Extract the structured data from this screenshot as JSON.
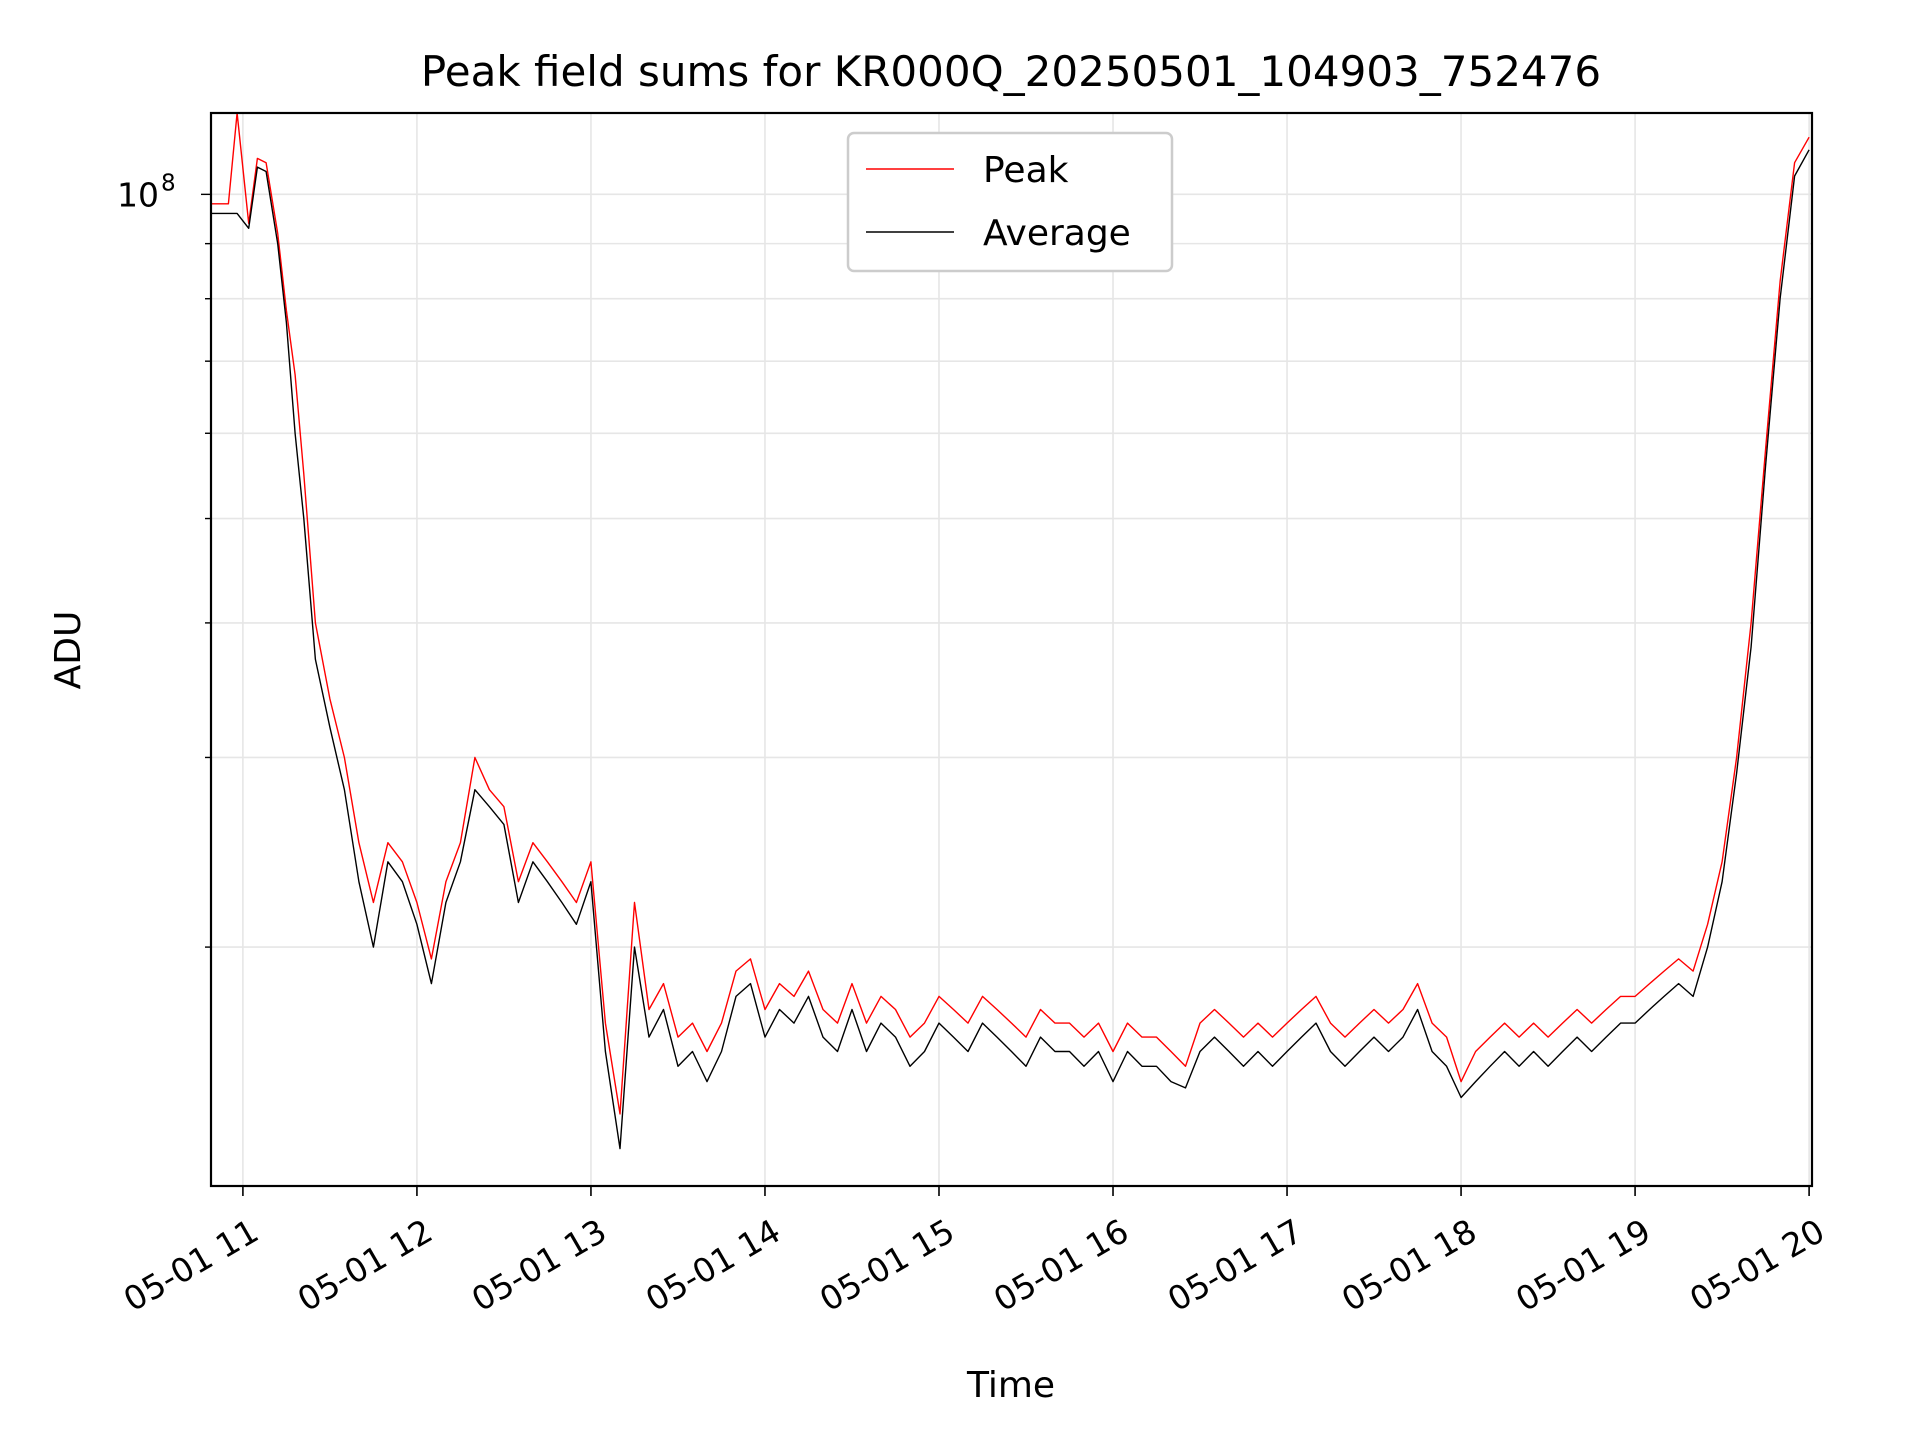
{
  "chart_data": {
    "type": "line",
    "title": "Peak field sums for KR000Q_20250501_104903_752476",
    "xlabel": "Time",
    "ylabel": "ADU",
    "y_scale": "log",
    "x_range": [
      "2025-05-01 10:49",
      "2025-05-01 20:01"
    ],
    "ylim": [
      12000000,
      119000000
    ],
    "x_ticks": [
      "05-01 11",
      "05-01 12",
      "05-01 13",
      "05-01 14",
      "05-01 15",
      "05-01 16",
      "05-01 17",
      "05-01 18",
      "05-01 19",
      "05-01 20"
    ],
    "y_ticks": [
      {
        "value": 100000000,
        "base": "10",
        "exponent": "8"
      }
    ],
    "grid": true,
    "legend_position": "top-center",
    "series": [
      {
        "name": "Peak",
        "color": "#ff0000",
        "x": [
          "2025-05-01 10:49",
          "2025-05-01 10:55",
          "2025-05-01 10:58",
          "2025-05-01 11:02",
          "2025-05-01 11:05",
          "2025-05-01 11:08",
          "2025-05-01 11:12",
          "2025-05-01 11:15",
          "2025-05-01 11:18",
          "2025-05-01 11:21",
          "2025-05-01 11:25",
          "2025-05-01 11:30",
          "2025-05-01 11:35",
          "2025-05-01 11:40",
          "2025-05-01 11:45",
          "2025-05-01 11:50",
          "2025-05-01 11:55",
          "2025-05-01 12:00",
          "2025-05-01 12:05",
          "2025-05-01 12:10",
          "2025-05-01 12:15",
          "2025-05-01 12:20",
          "2025-05-01 12:25",
          "2025-05-01 12:30",
          "2025-05-01 12:35",
          "2025-05-01 12:40",
          "2025-05-01 12:45",
          "2025-05-01 12:50",
          "2025-05-01 12:55",
          "2025-05-01 13:00",
          "2025-05-01 13:05",
          "2025-05-01 13:10",
          "2025-05-01 13:15",
          "2025-05-01 13:20",
          "2025-05-01 13:25",
          "2025-05-01 13:30",
          "2025-05-01 13:35",
          "2025-05-01 13:40",
          "2025-05-01 13:45",
          "2025-05-01 13:50",
          "2025-05-01 13:55",
          "2025-05-01 14:00",
          "2025-05-01 14:05",
          "2025-05-01 14:10",
          "2025-05-01 14:15",
          "2025-05-01 14:20",
          "2025-05-01 14:25",
          "2025-05-01 14:30",
          "2025-05-01 14:35",
          "2025-05-01 14:40",
          "2025-05-01 14:45",
          "2025-05-01 14:50",
          "2025-05-01 14:55",
          "2025-05-01 15:00",
          "2025-05-01 15:05",
          "2025-05-01 15:10",
          "2025-05-01 15:15",
          "2025-05-01 15:20",
          "2025-05-01 15:25",
          "2025-05-01 15:30",
          "2025-05-01 15:35",
          "2025-05-01 15:40",
          "2025-05-01 15:45",
          "2025-05-01 15:50",
          "2025-05-01 15:55",
          "2025-05-01 16:00",
          "2025-05-01 16:05",
          "2025-05-01 16:10",
          "2025-05-01 16:15",
          "2025-05-01 16:20",
          "2025-05-01 16:25",
          "2025-05-01 16:30",
          "2025-05-01 16:35",
          "2025-05-01 16:40",
          "2025-05-01 16:45",
          "2025-05-01 16:50",
          "2025-05-01 16:55",
          "2025-05-01 17:00",
          "2025-05-01 17:05",
          "2025-05-01 17:10",
          "2025-05-01 17:15",
          "2025-05-01 17:20",
          "2025-05-01 17:25",
          "2025-05-01 17:30",
          "2025-05-01 17:35",
          "2025-05-01 17:40",
          "2025-05-01 17:45",
          "2025-05-01 17:50",
          "2025-05-01 17:55",
          "2025-05-01 18:00",
          "2025-05-01 18:05",
          "2025-05-01 18:10",
          "2025-05-01 18:15",
          "2025-05-01 18:20",
          "2025-05-01 18:25",
          "2025-05-01 18:30",
          "2025-05-01 18:35",
          "2025-05-01 18:40",
          "2025-05-01 18:45",
          "2025-05-01 18:50",
          "2025-05-01 18:55",
          "2025-05-01 19:00",
          "2025-05-01 19:05",
          "2025-05-01 19:10",
          "2025-05-01 19:15",
          "2025-05-01 19:20",
          "2025-05-01 19:25",
          "2025-05-01 19:30",
          "2025-05-01 19:35",
          "2025-05-01 19:40",
          "2025-05-01 19:45",
          "2025-05-01 19:50",
          "2025-05-01 19:55",
          "2025-05-01 20:00"
        ],
        "y": [
          98000000,
          98000000,
          119000000,
          94000000,
          108000000,
          107000000,
          92000000,
          78000000,
          68000000,
          55000000,
          40000000,
          34000000,
          30000000,
          25000000,
          22000000,
          25000000,
          24000000,
          22000000,
          19500000,
          23000000,
          25000000,
          30000000,
          28000000,
          27000000,
          23000000,
          25000000,
          24000000,
          23000000,
          22000000,
          24000000,
          17000000,
          14000000,
          22000000,
          17500000,
          18500000,
          16500000,
          17000000,
          16000000,
          17000000,
          19000000,
          19500000,
          17500000,
          18500000,
          18000000,
          19000000,
          17500000,
          17000000,
          18500000,
          17000000,
          18000000,
          17500000,
          16500000,
          17000000,
          18000000,
          17500000,
          17000000,
          18000000,
          17500000,
          17000000,
          16500000,
          17500000,
          17000000,
          17000000,
          16500000,
          17000000,
          16000000,
          17000000,
          16500000,
          16500000,
          16000000,
          15500000,
          17000000,
          17500000,
          17000000,
          16500000,
          17000000,
          16500000,
          17000000,
          17500000,
          18000000,
          17000000,
          16500000,
          17000000,
          17500000,
          17000000,
          17500000,
          18500000,
          17000000,
          16500000,
          15000000,
          16000000,
          16500000,
          17000000,
          16500000,
          17000000,
          16500000,
          17000000,
          17500000,
          17000000,
          17500000,
          18000000,
          18000000,
          18500000,
          19000000,
          19500000,
          19000000,
          21000000,
          24000000,
          30000000,
          40000000,
          58000000,
          83000000,
          107000000,
          113000000
        ]
      },
      {
        "name": "Average",
        "color": "#000000",
        "x": [
          "2025-05-01 10:49",
          "2025-05-01 10:55",
          "2025-05-01 10:58",
          "2025-05-01 11:02",
          "2025-05-01 11:05",
          "2025-05-01 11:08",
          "2025-05-01 11:12",
          "2025-05-01 11:15",
          "2025-05-01 11:18",
          "2025-05-01 11:21",
          "2025-05-01 11:25",
          "2025-05-01 11:30",
          "2025-05-01 11:35",
          "2025-05-01 11:40",
          "2025-05-01 11:45",
          "2025-05-01 11:50",
          "2025-05-01 11:55",
          "2025-05-01 12:00",
          "2025-05-01 12:05",
          "2025-05-01 12:10",
          "2025-05-01 12:15",
          "2025-05-01 12:20",
          "2025-05-01 12:25",
          "2025-05-01 12:30",
          "2025-05-01 12:35",
          "2025-05-01 12:40",
          "2025-05-01 12:45",
          "2025-05-01 12:50",
          "2025-05-01 12:55",
          "2025-05-01 13:00",
          "2025-05-01 13:05",
          "2025-05-01 13:10",
          "2025-05-01 13:15",
          "2025-05-01 13:20",
          "2025-05-01 13:25",
          "2025-05-01 13:30",
          "2025-05-01 13:35",
          "2025-05-01 13:40",
          "2025-05-01 13:45",
          "2025-05-01 13:50",
          "2025-05-01 13:55",
          "2025-05-01 14:00",
          "2025-05-01 14:05",
          "2025-05-01 14:10",
          "2025-05-01 14:15",
          "2025-05-01 14:20",
          "2025-05-01 14:25",
          "2025-05-01 14:30",
          "2025-05-01 14:35",
          "2025-05-01 14:40",
          "2025-05-01 14:45",
          "2025-05-01 14:50",
          "2025-05-01 14:55",
          "2025-05-01 15:00",
          "2025-05-01 15:05",
          "2025-05-01 15:10",
          "2025-05-01 15:15",
          "2025-05-01 15:20",
          "2025-05-01 15:25",
          "2025-05-01 15:30",
          "2025-05-01 15:35",
          "2025-05-01 15:40",
          "2025-05-01 15:45",
          "2025-05-01 15:50",
          "2025-05-01 15:55",
          "2025-05-01 16:00",
          "2025-05-01 16:05",
          "2025-05-01 16:10",
          "2025-05-01 16:15",
          "2025-05-01 16:20",
          "2025-05-01 16:25",
          "2025-05-01 16:30",
          "2025-05-01 16:35",
          "2025-05-01 16:40",
          "2025-05-01 16:45",
          "2025-05-01 16:50",
          "2025-05-01 16:55",
          "2025-05-01 17:00",
          "2025-05-01 17:05",
          "2025-05-01 17:10",
          "2025-05-01 17:15",
          "2025-05-01 17:20",
          "2025-05-01 17:25",
          "2025-05-01 17:30",
          "2025-05-01 17:35",
          "2025-05-01 17:40",
          "2025-05-01 17:45",
          "2025-05-01 17:50",
          "2025-05-01 17:55",
          "2025-05-01 18:00",
          "2025-05-01 18:05",
          "2025-05-01 18:10",
          "2025-05-01 18:15",
          "2025-05-01 18:20",
          "2025-05-01 18:25",
          "2025-05-01 18:30",
          "2025-05-01 18:35",
          "2025-05-01 18:40",
          "2025-05-01 18:45",
          "2025-05-01 18:50",
          "2025-05-01 18:55",
          "2025-05-01 19:00",
          "2025-05-01 19:05",
          "2025-05-01 19:10",
          "2025-05-01 19:15",
          "2025-05-01 19:20",
          "2025-05-01 19:25",
          "2025-05-01 19:30",
          "2025-05-01 19:35",
          "2025-05-01 19:40",
          "2025-05-01 19:45",
          "2025-05-01 19:50",
          "2025-05-01 19:55",
          "2025-05-01 20:00"
        ],
        "y": [
          96000000,
          96000000,
          96000000,
          93000000,
          106000000,
          105000000,
          90000000,
          76000000,
          60000000,
          50000000,
          37000000,
          32000000,
          28000000,
          23000000,
          20000000,
          24000000,
          23000000,
          21000000,
          18500000,
          22000000,
          24000000,
          28000000,
          27000000,
          26000000,
          22000000,
          24000000,
          23000000,
          22000000,
          21000000,
          23000000,
          16000000,
          13000000,
          20000000,
          16500000,
          17500000,
          15500000,
          16000000,
          15000000,
          16000000,
          18000000,
          18500000,
          16500000,
          17500000,
          17000000,
          18000000,
          16500000,
          16000000,
          17500000,
          16000000,
          17000000,
          16500000,
          15500000,
          16000000,
          17000000,
          16500000,
          16000000,
          17000000,
          16500000,
          16000000,
          15500000,
          16500000,
          16000000,
          16000000,
          15500000,
          16000000,
          15000000,
          16000000,
          15500000,
          15500000,
          15000000,
          14800000,
          16000000,
          16500000,
          16000000,
          15500000,
          16000000,
          15500000,
          16000000,
          16500000,
          17000000,
          16000000,
          15500000,
          16000000,
          16500000,
          16000000,
          16500000,
          17500000,
          16000000,
          15500000,
          14500000,
          15000000,
          15500000,
          16000000,
          15500000,
          16000000,
          15500000,
          16000000,
          16500000,
          16000000,
          16500000,
          17000000,
          17000000,
          17500000,
          18000000,
          18500000,
          18000000,
          20000000,
          23000000,
          29000000,
          38000000,
          56000000,
          80000000,
          104000000,
          110000000
        ]
      }
    ]
  }
}
